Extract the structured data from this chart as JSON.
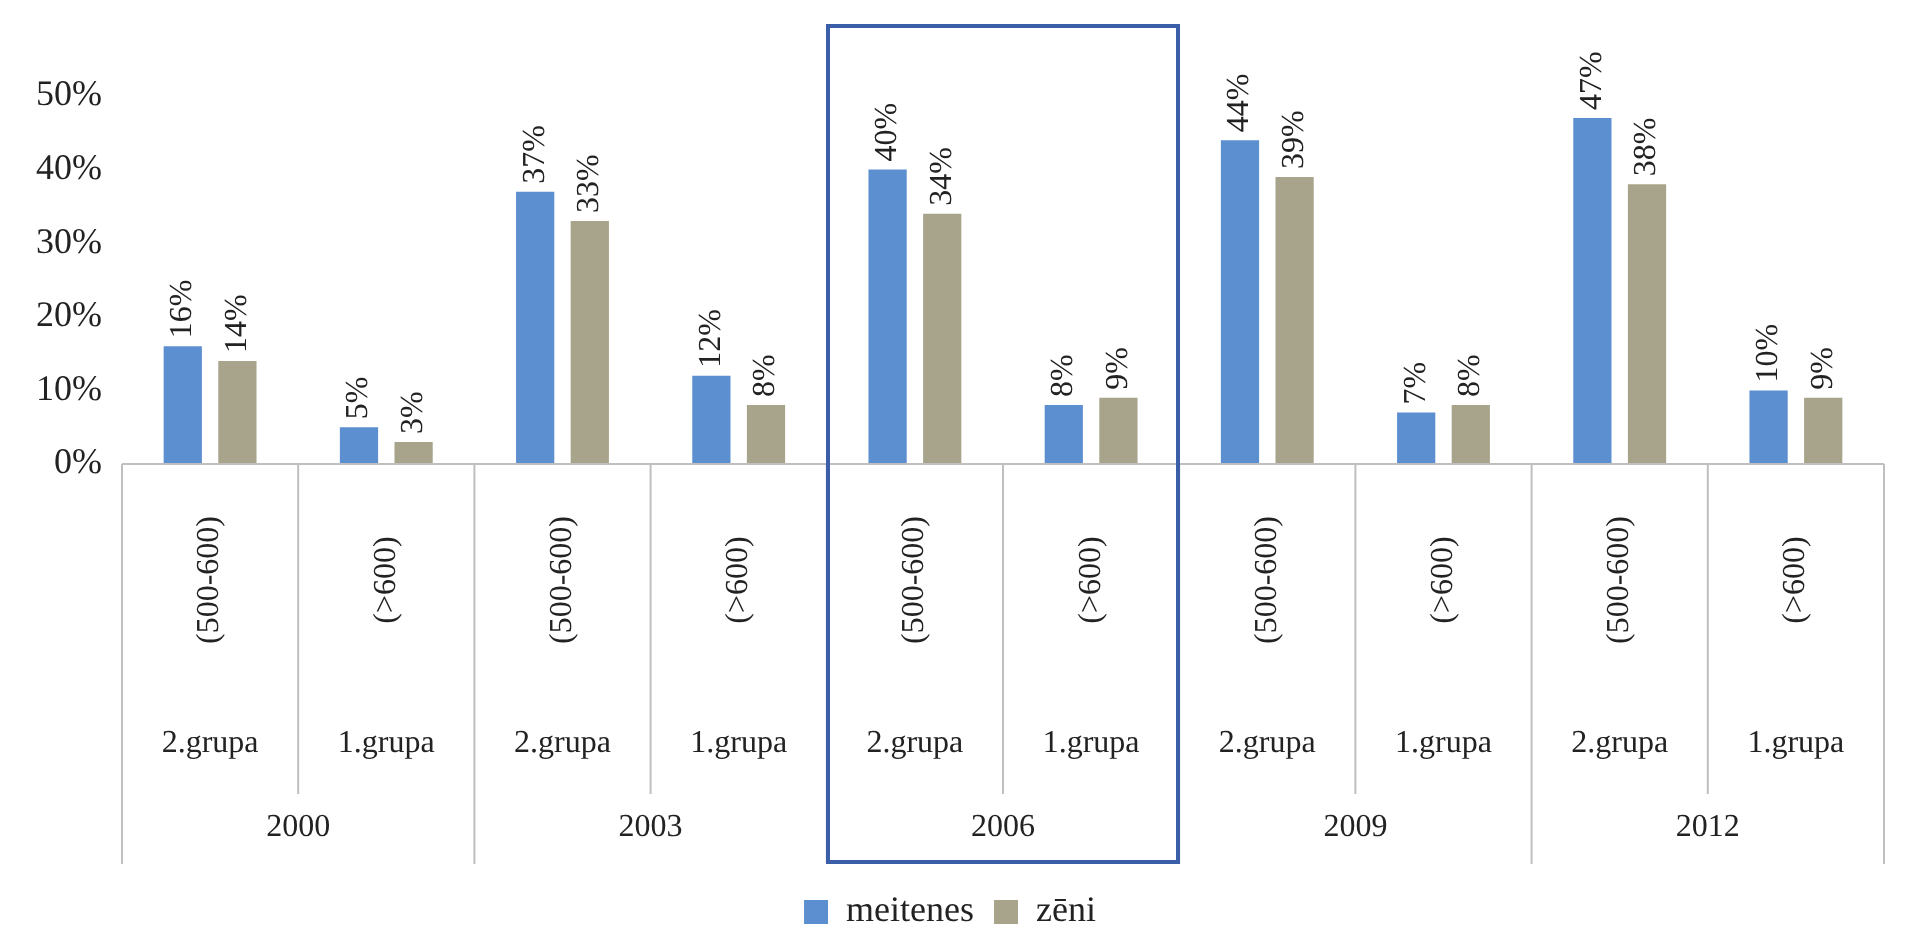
{
  "chart_data": {
    "type": "bar",
    "categories": [
      "(500-600) 2.grupa",
      "(>600) 1.grupa",
      "(500-600) 2.grupa",
      "(>600) 1.grupa",
      "(500-600) 2.grupa",
      "(>600) 1.grupa",
      "(500-600) 2.grupa",
      "(>600) 1.grupa",
      "(500-600) 2.grupa",
      "(>600) 1.grupa"
    ],
    "series": [
      {
        "name": "meitenes",
        "color": "#5b8fd0",
        "values": [
          16,
          5,
          37,
          12,
          40,
          8,
          44,
          7,
          47,
          10
        ],
        "value_labels": [
          "16%",
          "5%",
          "37%",
          "12%",
          "40%",
          "8%",
          "44%",
          "7%",
          "47%",
          "10%"
        ]
      },
      {
        "name": "zēni",
        "color": "#a8a48c",
        "values": [
          14,
          3,
          33,
          8,
          34,
          9,
          39,
          8,
          38,
          9
        ],
        "value_labels": [
          "14%",
          "3%",
          "33%",
          "8%",
          "34%",
          "9%",
          "39%",
          "8%",
          "38%",
          "9%"
        ]
      }
    ],
    "annotations": [
      "2000",
      "2003",
      "2006",
      "2009",
      "2012"
    ],
    "ylim": [
      0,
      50
    ],
    "yticks": [
      {
        "value": 0,
        "label": "0%"
      },
      {
        "value": 10,
        "label": "10%"
      },
      {
        "value": 20,
        "label": "20%"
      },
      {
        "value": 30,
        "label": "30%"
      },
      {
        "value": 40,
        "label": "40%"
      },
      {
        "value": 50,
        "label": "50%"
      }
    ],
    "grid": false,
    "legend": "bottom"
  }
}
